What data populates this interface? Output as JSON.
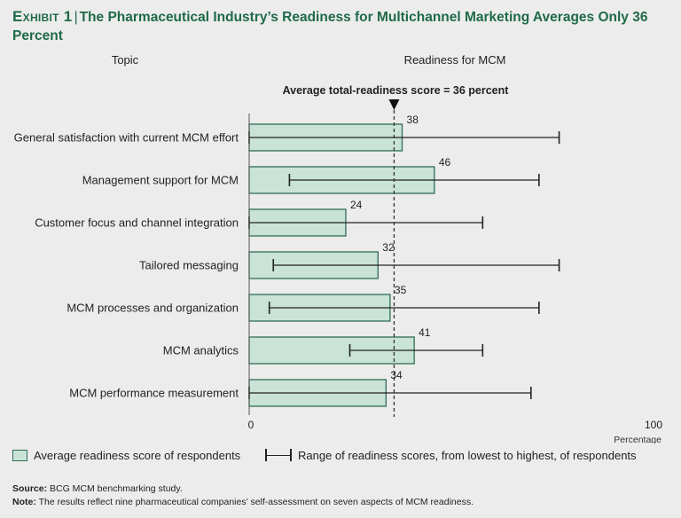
{
  "title": {
    "exhibit": "Exhibit 1",
    "separator": "|",
    "text": "The Pharmaceutical Industry’s Readiness for Multichannel Marketing Averages Only 36 Percent"
  },
  "chart_data": {
    "type": "bar",
    "orientation": "horizontal",
    "column_header_left": "Topic",
    "column_header_right": "Readiness for MCM",
    "categories": [
      "General satisfaction with current MCM effort",
      "Management support for MCM",
      "Customer focus and channel integration",
      "Tailored messaging",
      "MCM processes and organization",
      "MCM analytics",
      "MCM performance measurement"
    ],
    "series": [
      {
        "name": "Average readiness score of respondents",
        "values": [
          38,
          46,
          24,
          32,
          35,
          41,
          34
        ]
      }
    ],
    "ranges": {
      "name": "Range of readiness scores, from lowest to highest, of respondents",
      "low": [
        0,
        10,
        0,
        6,
        5,
        25,
        0
      ],
      "high": [
        77,
        72,
        58,
        77,
        72,
        58,
        70
      ]
    },
    "reference_line": {
      "value": 36,
      "label": "Average total-readiness score = 36 percent"
    },
    "xlim": [
      0,
      100
    ],
    "x_ticks": [
      "0",
      "100"
    ],
    "xlabel": "Percentage",
    "colors": {
      "bar_fill": "#c9e3d6",
      "bar_stroke": "#2f6e55",
      "range_line": "#222222",
      "reference_line": "#333333",
      "title": "#1f6a48"
    }
  },
  "legend": {
    "bar_label": "Average readiness score of respondents",
    "range_label": "Range of readiness scores, from lowest to highest, of respondents"
  },
  "footer": {
    "source_label": "Source:",
    "source_text": "BCG MCM benchmarking study.",
    "note_label": "Note:",
    "note_text": "The results reflect nine pharmaceutical companies’ self-assessment on seven aspects of MCM readiness."
  }
}
